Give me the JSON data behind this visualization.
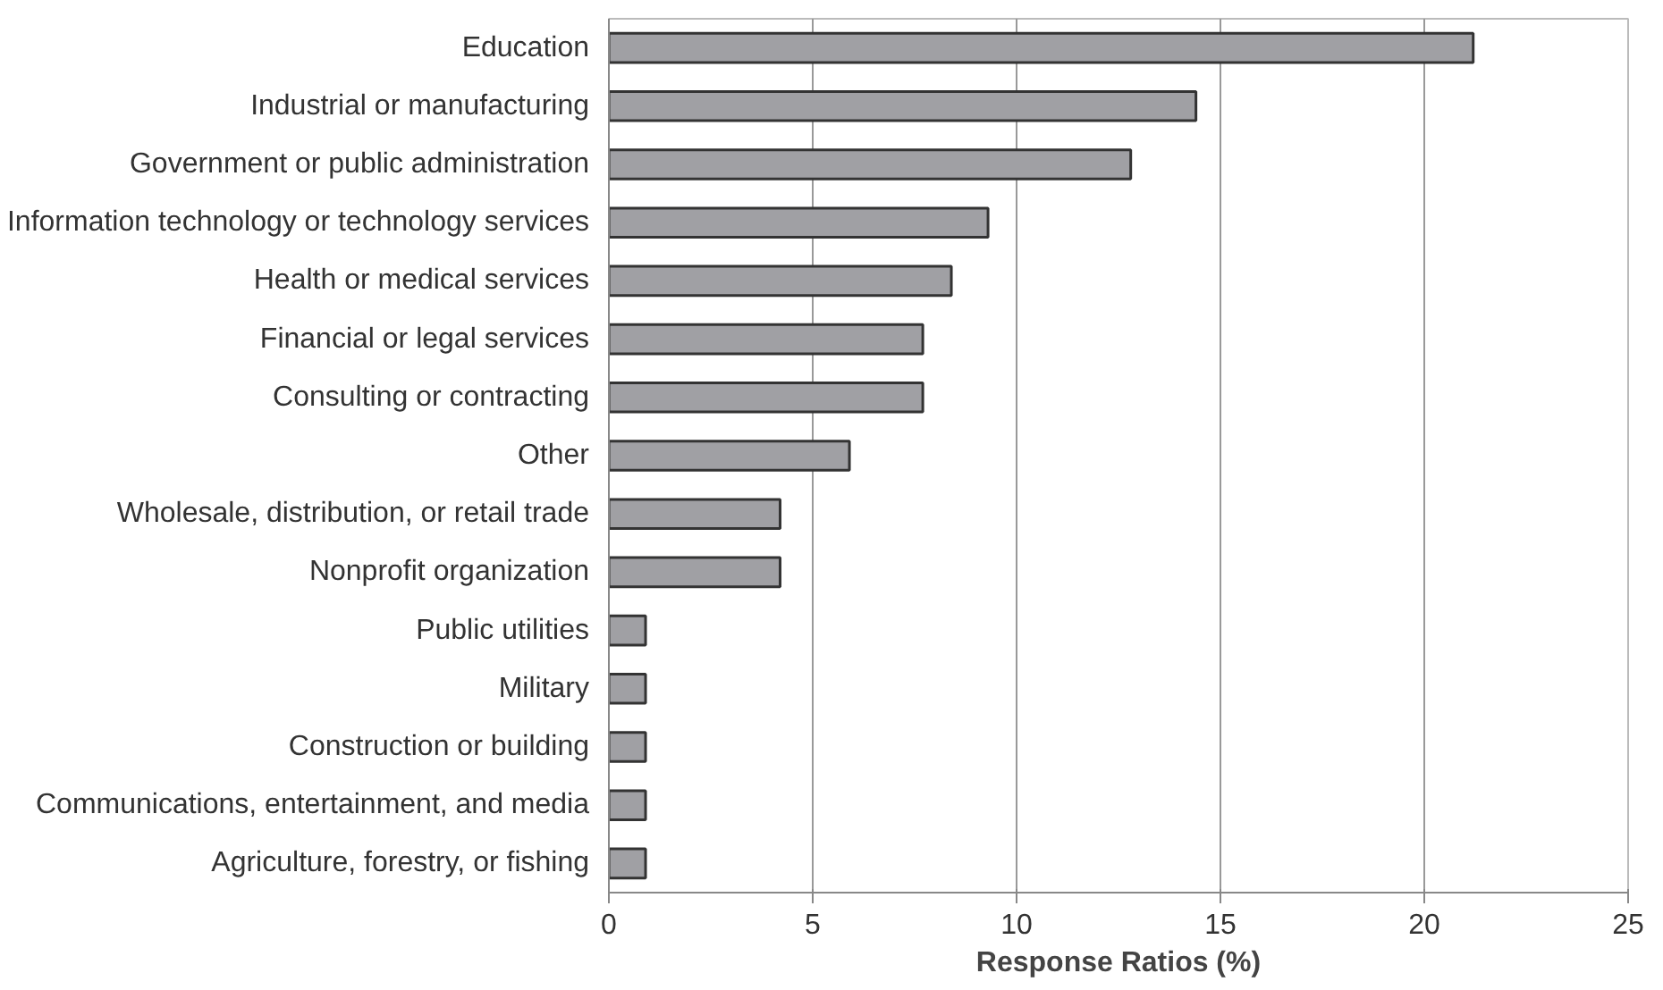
{
  "chart_data": {
    "type": "bar",
    "orientation": "horizontal",
    "xlabel": "Response Ratios (%)",
    "categories": [
      "Education",
      "Industrial or manufacturing",
      "Government or public administration",
      "Information technology or technology services",
      "Health or medical services",
      "Financial or legal services",
      "Consulting or contracting",
      "Other",
      "Wholesale, distribution, or retail trade",
      "Nonprofit organization",
      "Public utilities",
      "Military",
      "Construction or building",
      "Communications, entertainment, and media",
      "Agriculture, forestry, or fishing"
    ],
    "values": [
      21.2,
      14.4,
      12.8,
      9.3,
      8.4,
      7.7,
      7.7,
      5.9,
      4.2,
      4.2,
      0.9,
      0.9,
      0.9,
      0.9,
      0.9
    ],
    "color": "#a0a0a4",
    "xlim": [
      0,
      25
    ],
    "xticks": [
      0,
      5,
      10,
      15,
      20,
      25
    ],
    "grid": "x"
  }
}
